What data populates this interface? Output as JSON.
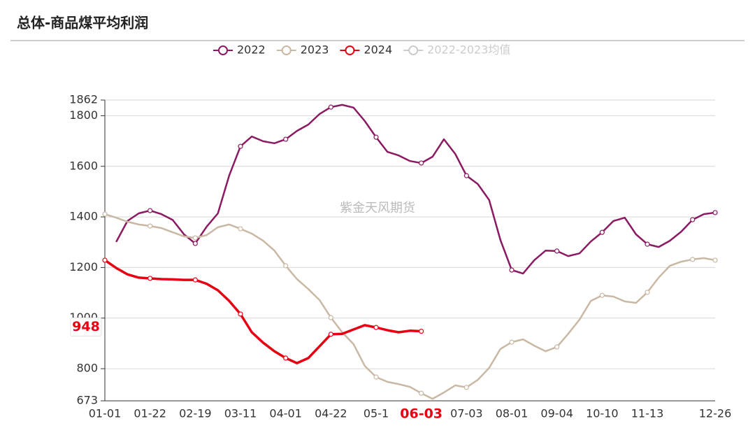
{
  "chart_data": {
    "type": "line",
    "title": "总体-商品煤平均利润",
    "watermark": "紫金天风期货",
    "categories": [
      "01-01",
      null,
      null,
      null,
      "01-22",
      null,
      null,
      null,
      "02-19",
      null,
      null,
      null,
      "03-11",
      null,
      null,
      null,
      "04-01",
      null,
      null,
      null,
      "04-22",
      null,
      null,
      null,
      "05-1",
      null,
      null,
      null,
      "06-03",
      null,
      null,
      null,
      "07-03",
      null,
      null,
      null,
      "08-01",
      null,
      null,
      null,
      "09-04",
      null,
      null,
      null,
      "10-10",
      null,
      null,
      null,
      "11-13",
      null,
      null,
      null,
      null,
      null,
      "12-26"
    ],
    "highlight": {
      "category_index": 28,
      "color": "#e60012"
    },
    "ylim": [
      673,
      1862
    ],
    "yticks": [
      673,
      800,
      1000,
      1200,
      1400,
      1600,
      1800,
      1862
    ],
    "grid": true,
    "legend": "top",
    "series": [
      {
        "name": "2022",
        "color": "#8b1a62",
        "values": [
          null,
          1301,
          1384,
          1414,
          1425,
          1411,
          1388,
          1331,
          1295,
          1361,
          1414,
          1563,
          1679,
          1718,
          1699,
          1691,
          1707,
          1740,
          1765,
          1807,
          1834,
          1843,
          1832,
          1779,
          1715,
          1657,
          1643,
          1621,
          1613,
          1638,
          1707,
          1649,
          1563,
          1530,
          1467,
          1309,
          1190,
          1176,
          1229,
          1267,
          1265,
          1245,
          1256,
          1303,
          1339,
          1384,
          1397,
          1331,
          1292,
          1281,
          1306,
          1342,
          1389,
          1411,
          1417
        ]
      },
      {
        "name": "2023",
        "color": "#c9b8a3",
        "values": [
          1411,
          1397,
          1381,
          1370,
          1364,
          1356,
          1339,
          1323,
          1317,
          1328,
          1359,
          1370,
          1353,
          1334,
          1306,
          1267,
          1207,
          1154,
          1115,
          1071,
          1002,
          944,
          897,
          811,
          767,
          748,
          739,
          728,
          703,
          681,
          706,
          734,
          726,
          756,
          803,
          878,
          905,
          916,
          891,
          869,
          886,
          938,
          994,
          1068,
          1090,
          1085,
          1066,
          1060,
          1102,
          1160,
          1207,
          1223,
          1232,
          1237,
          1229
        ]
      },
      {
        "name": "2024",
        "color": "#e60012",
        "values": [
          1229,
          1198,
          1173,
          1160,
          1157,
          1154,
          1153,
          1151,
          1151,
          1136,
          1110,
          1068,
          1016,
          944,
          903,
          869,
          842,
          822,
          842,
          889,
          936,
          938,
          955,
          972,
          963,
          952,
          944,
          950,
          948,
          null,
          null,
          null,
          null,
          null,
          null,
          null,
          null,
          null,
          null,
          null,
          null,
          null,
          null,
          null,
          null,
          null,
          null,
          null,
          null,
          null,
          null,
          null,
          null,
          null,
          null
        ],
        "value_labels": [
          null,
          null,
          null,
          null,
          null,
          null,
          null,
          null,
          null,
          null,
          null,
          null,
          null,
          null,
          null,
          null,
          null,
          null,
          null,
          null,
          null,
          null,
          null,
          null,
          null,
          null,
          null,
          null,
          "948",
          null,
          null,
          null,
          null,
          null,
          null,
          null,
          null,
          null,
          null,
          null,
          null,
          null,
          null,
          null,
          null,
          null,
          null,
          null,
          null,
          null,
          null,
          null,
          null,
          null,
          null
        ]
      },
      {
        "name": "2022-2023均值",
        "color": "#cccccc",
        "visible": false
      }
    ]
  }
}
